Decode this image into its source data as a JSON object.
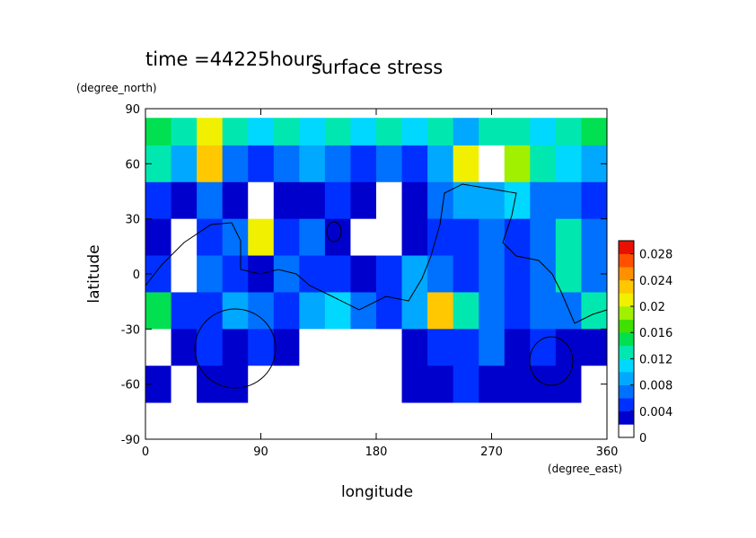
{
  "chart_data": {
    "type": "contourf",
    "title": "surface stress",
    "subtitle": "time =44225hours",
    "xlabel": "longitude",
    "xunits": "(degree_east)",
    "ylabel": "latitude",
    "yunits": "(degree_north)",
    "xlim": [
      0,
      360
    ],
    "ylim": [
      -90,
      90
    ],
    "xticks": [
      0,
      90,
      180,
      270,
      360
    ],
    "yticks": [
      -90,
      -60,
      -30,
      0,
      30,
      60,
      90
    ],
    "x_edges": [
      0,
      20,
      40,
      60,
      80,
      100,
      120,
      140,
      160,
      180,
      200,
      220,
      240,
      260,
      280,
      300,
      320,
      340,
      360
    ],
    "y_edges": [
      85,
      70,
      50,
      30,
      10,
      -10,
      -30,
      -50,
      -70
    ],
    "z": [
      [
        0.014,
        0.012,
        0.02,
        0.012,
        0.01,
        0.012,
        0.01,
        0.012,
        0.01,
        0.012,
        0.01,
        0.012,
        0.008,
        0.012,
        0.012,
        0.01,
        0.012,
        0.014
      ],
      [
        0.012,
        0.008,
        0.022,
        0.006,
        0.004,
        0.006,
        0.008,
        0.006,
        0.004,
        0.006,
        0.004,
        0.008,
        0.02,
        0,
        0.018,
        0.012,
        0.01,
        0.008
      ],
      [
        0.004,
        0.003,
        0.006,
        0.003,
        0,
        0.003,
        0.003,
        0.004,
        0.003,
        0,
        0.003,
        0.006,
        0.008,
        0.008,
        0.01,
        0.006,
        0.006,
        0.004
      ],
      [
        0.003,
        0,
        0.004,
        0.006,
        0.02,
        0.004,
        0.006,
        0.003,
        0,
        0,
        0.003,
        0.004,
        0.004,
        0.006,
        0.004,
        0.006,
        0.012,
        0.006
      ],
      [
        0.004,
        0,
        0.006,
        0.004,
        0.003,
        0.006,
        0.004,
        0.004,
        0.003,
        0.004,
        0.008,
        0.006,
        0.004,
        0.006,
        0.004,
        0.006,
        0.012,
        0.006
      ],
      [
        0.014,
        0.004,
        0.004,
        0.008,
        0.006,
        0.004,
        0.008,
        0.01,
        0.006,
        0.004,
        0.008,
        0.022,
        0.012,
        0.006,
        0.004,
        0.006,
        0.006,
        0.012
      ],
      [
        0,
        0.003,
        0.004,
        0.003,
        0.004,
        0.003,
        0,
        0,
        0,
        0,
        0.003,
        0.004,
        0.004,
        0.006,
        0.003,
        0.004,
        0.003,
        0.003
      ],
      [
        0.003,
        0,
        0.003,
        0.003,
        0,
        0,
        0,
        0,
        0,
        0,
        0.003,
        0.003,
        0.004,
        0.003,
        0.003,
        0.003,
        0.003,
        0
      ]
    ],
    "colorbar": {
      "levels": [
        0,
        0.002,
        0.004,
        0.006,
        0.008,
        0.01,
        0.012,
        0.014,
        0.016,
        0.018,
        0.02,
        0.022,
        0.024,
        0.026,
        0.028,
        0.03
      ],
      "colors": [
        "#ffffff",
        "#0000cd",
        "#0030ff",
        "#0070ff",
        "#00a8ff",
        "#00d8ff",
        "#00e8b0",
        "#00e050",
        "#40e000",
        "#a0f000",
        "#f0f000",
        "#ffc800",
        "#ff9000",
        "#ff5000",
        "#e81000"
      ],
      "ticks": [
        0,
        0.004,
        0.008,
        0.012,
        0.016,
        0.02,
        0.024,
        0.028
      ]
    }
  }
}
